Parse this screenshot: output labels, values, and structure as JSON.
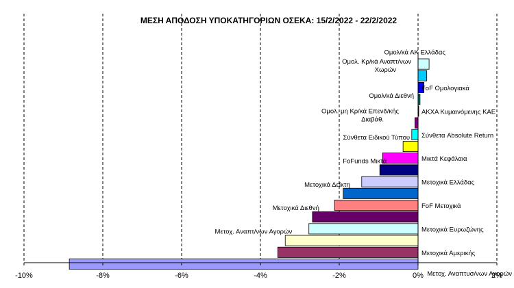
{
  "chart_data": {
    "type": "bar",
    "orientation": "horizontal",
    "title": "ΜΕΣΗ ΑΠΟΔΟΣΗ ΥΠΟΚΑΤΗΓΟΡΙΩΝ  ΟΣΕΚΑ:  15/2/2022  - 22/2/2022",
    "xlabel": "",
    "ylabel": "",
    "xlim": [
      -10,
      2
    ],
    "x_ticks": [
      "-10%",
      "-8%",
      "-6%",
      "-4%",
      "-2%",
      "0%",
      "2%"
    ],
    "x_tick_values": [
      -10,
      -8,
      -6,
      -4,
      -2,
      0,
      2
    ],
    "grid": "vertical dashed",
    "legend": "none",
    "categories": [
      "Ομολ/κά ΑΚ Ελλάδας",
      "Ομολ. Κρ/κά Αναπτ/νων Χωρών",
      "FoF Ομολογιακά",
      "Ομολ/κά Διεθνή",
      "ΑΚΧΑ Κυμαινόμενης ΚΑΕ",
      "Ομολ. μη Κρ/κά Επενδ/κής Διαβάθ.",
      "Σύνθετα Absolute Return",
      "Σύνθετα Ειδικού Τύπου",
      "Μικτά Κεφάλαια",
      "FoFunds Μικτά",
      "Μετοχικά Ελλάδας",
      "Μετοχικά Δείκτη",
      "FoF Μετοχικά",
      "Μετοχικά Διεθνή",
      "Μετοχικά Ευρωζώνης",
      "Μετοχ.  Αναπτ/νων Αγορών",
      "Μετοχικά Αμερικής",
      "Μετοχ. Αναπτυσ/νων Αγορών"
    ],
    "values": [
      0.28,
      0.22,
      0.15,
      0.05,
      0.01,
      -0.08,
      -0.16,
      -0.38,
      -0.9,
      -0.97,
      -1.43,
      -1.9,
      -2.12,
      -2.68,
      -2.77,
      -3.37,
      -3.56,
      -8.85
    ],
    "colors": [
      "#CCFFFF",
      "#00CCFF",
      "#0000FF",
      "#008080",
      "#800000",
      "#800080",
      "#00FFFF",
      "#FFFF00",
      "#FF00FF",
      "#000080",
      "#CCCCFF",
      "#0066CC",
      "#FF8080",
      "#660066",
      "#CCFFFF",
      "#FFFFCC",
      "#993366",
      "#9999FF"
    ]
  }
}
